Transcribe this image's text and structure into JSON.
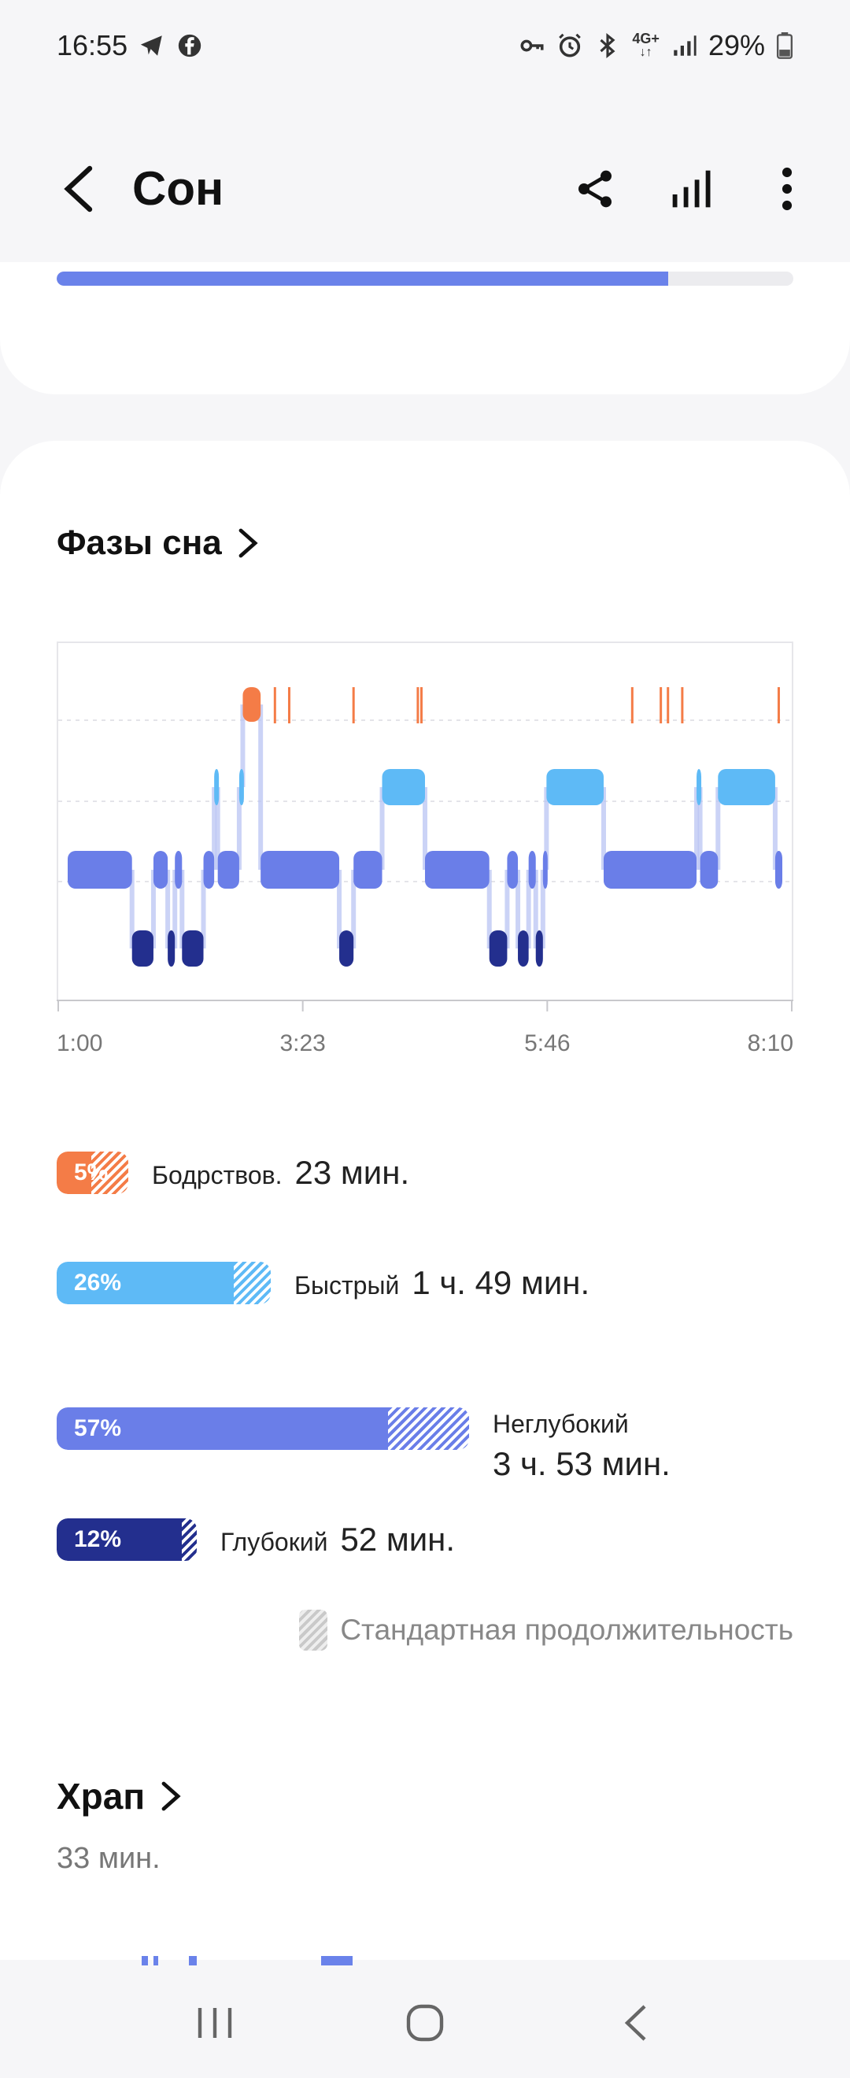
{
  "status_bar": {
    "time": "16:55",
    "left_icons": [
      "telegram-icon",
      "facebook-icon"
    ],
    "right_icons": [
      "vpn-key-icon",
      "alarm-icon",
      "bluetooth-icon",
      "mobile-data-icon",
      "signal-icon"
    ],
    "network": "4G+",
    "battery": "29%"
  },
  "app_bar": {
    "title": "Сон",
    "actions": [
      "share-icon",
      "stats-icon",
      "more-icon"
    ]
  },
  "top_card": {
    "progress": 0.83
  },
  "sleep_stages": {
    "title": "Фазы сна",
    "chart_data": {
      "type": "timeline",
      "x_ticks": [
        "1:00",
        "3:23",
        "5:46",
        "8:10"
      ],
      "levels": [
        "awake",
        "rem",
        "light",
        "deep"
      ],
      "colors": {
        "awake": "#f47c47",
        "rem": "#5ebaf6",
        "light": "#6a7ee8",
        "deep": "#232f8e"
      },
      "segments": [
        {
          "level": "light",
          "start": 0.0,
          "end": 0.09
        },
        {
          "level": "deep",
          "start": 0.09,
          "end": 0.12
        },
        {
          "level": "light",
          "start": 0.12,
          "end": 0.14
        },
        {
          "level": "deep",
          "start": 0.14,
          "end": 0.15
        },
        {
          "level": "light",
          "start": 0.15,
          "end": 0.16
        },
        {
          "level": "deep",
          "start": 0.16,
          "end": 0.19
        },
        {
          "level": "light",
          "start": 0.19,
          "end": 0.205
        },
        {
          "level": "rem",
          "start": 0.205,
          "end": 0.21
        },
        {
          "level": "light",
          "start": 0.21,
          "end": 0.24
        },
        {
          "level": "rem",
          "start": 0.24,
          "end": 0.245
        },
        {
          "level": "awake",
          "start": 0.245,
          "end": 0.27
        },
        {
          "level": "light",
          "start": 0.27,
          "end": 0.38
        },
        {
          "level": "deep",
          "start": 0.38,
          "end": 0.4
        },
        {
          "level": "light",
          "start": 0.4,
          "end": 0.44
        },
        {
          "level": "rem",
          "start": 0.44,
          "end": 0.5
        },
        {
          "level": "light",
          "start": 0.5,
          "end": 0.59
        },
        {
          "level": "deep",
          "start": 0.59,
          "end": 0.615
        },
        {
          "level": "light",
          "start": 0.615,
          "end": 0.63
        },
        {
          "level": "deep",
          "start": 0.63,
          "end": 0.645
        },
        {
          "level": "light",
          "start": 0.645,
          "end": 0.655
        },
        {
          "level": "deep",
          "start": 0.655,
          "end": 0.665
        },
        {
          "level": "light",
          "start": 0.665,
          "end": 0.67
        },
        {
          "level": "rem",
          "start": 0.67,
          "end": 0.75
        },
        {
          "level": "light",
          "start": 0.75,
          "end": 0.88
        },
        {
          "level": "rem",
          "start": 0.88,
          "end": 0.885
        },
        {
          "level": "light",
          "start": 0.885,
          "end": 0.91
        },
        {
          "level": "rem",
          "start": 0.91,
          "end": 0.99
        },
        {
          "level": "light",
          "start": 0.99,
          "end": 1.0
        }
      ],
      "awake_ticks": [
        0.29,
        0.31,
        0.4,
        0.49,
        0.495,
        0.79,
        0.83,
        0.84,
        0.86,
        0.995
      ]
    },
    "legend": [
      {
        "key": "awake",
        "pct": "5%",
        "label": "Бодрствов.",
        "value": "23 мин.",
        "solid": 0.047,
        "standard": 0.05,
        "color": "#f47c47"
      },
      {
        "key": "rem",
        "pct": "26%",
        "label": "Быстрый",
        "value": "1 ч. 49 мин.",
        "solid": 0.24,
        "standard": 0.05,
        "color": "#5ebaf6"
      },
      {
        "key": "light",
        "pct": "57%",
        "label": "Неглубокий",
        "value": "3 ч. 53 мин.",
        "solid": 0.45,
        "standard": 0.11,
        "color": "#6a7ee8"
      },
      {
        "key": "deep",
        "pct": "12%",
        "label": "Глубокий",
        "value": "52 мин.",
        "solid": 0.17,
        "standard": 0.02,
        "color": "#232f8e"
      }
    ],
    "standard_note": "Стандартная продолжительность"
  },
  "snoring": {
    "title": "Храп",
    "value": "33 мин."
  },
  "nav_bar": [
    "recent-apps-icon",
    "home-icon",
    "back-nav-icon"
  ]
}
